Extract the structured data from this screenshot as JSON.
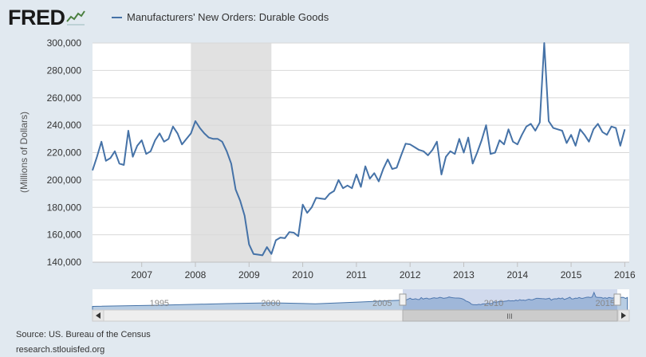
{
  "header": {
    "logo_text": "FRED",
    "logo_icon": "line-chart-icon"
  },
  "legend": {
    "series_label": "Manufacturers' New Orders: Durable Goods",
    "series_color": "#4572a7"
  },
  "navigator": {
    "labels": [
      "1995",
      "2000",
      "2005",
      "2010",
      "2015"
    ],
    "scrollbar_grip": "III"
  },
  "footer": {
    "source": "Source: US. Bureau of the Census",
    "url": "research.stlouisfed.org"
  },
  "chart_data": {
    "type": "line",
    "title": "",
    "xlabel": "",
    "ylabel": "(Millions of Dollars)",
    "xlim": [
      "2006-02",
      "2016-02"
    ],
    "ylim": [
      140000,
      300000
    ],
    "yticks": [
      "140,000",
      "160,000",
      "180,000",
      "200,000",
      "220,000",
      "240,000",
      "260,000",
      "280,000",
      "300,000"
    ],
    "xticks": [
      "2007",
      "2008",
      "2009",
      "2010",
      "2011",
      "2012",
      "2013",
      "2014",
      "2015",
      "2016"
    ],
    "grid": true,
    "recession_shading": [
      "2007-12",
      "2009-06"
    ],
    "series": [
      {
        "name": "Manufacturers' New Orders: Durable Goods",
        "color": "#4572a7",
        "x": [
          "2006-02",
          "2006-03",
          "2006-04",
          "2006-05",
          "2006-06",
          "2006-07",
          "2006-08",
          "2006-09",
          "2006-10",
          "2006-11",
          "2006-12",
          "2007-01",
          "2007-02",
          "2007-03",
          "2007-04",
          "2007-05",
          "2007-06",
          "2007-07",
          "2007-08",
          "2007-09",
          "2007-10",
          "2007-11",
          "2007-12",
          "2008-01",
          "2008-02",
          "2008-03",
          "2008-04",
          "2008-05",
          "2008-06",
          "2008-07",
          "2008-08",
          "2008-09",
          "2008-10",
          "2008-11",
          "2008-12",
          "2009-01",
          "2009-02",
          "2009-03",
          "2009-04",
          "2009-05",
          "2009-06",
          "2009-07",
          "2009-08",
          "2009-09",
          "2009-10",
          "2009-11",
          "2009-12",
          "2010-01",
          "2010-02",
          "2010-03",
          "2010-04",
          "2010-05",
          "2010-06",
          "2010-07",
          "2010-08",
          "2010-09",
          "2010-10",
          "2010-11",
          "2010-12",
          "2011-01",
          "2011-02",
          "2011-03",
          "2011-04",
          "2011-05",
          "2011-06",
          "2011-07",
          "2011-08",
          "2011-09",
          "2011-10",
          "2011-11",
          "2011-12",
          "2012-01",
          "2012-02",
          "2012-03",
          "2012-04",
          "2012-05",
          "2012-06",
          "2012-07",
          "2012-08",
          "2012-09",
          "2012-10",
          "2012-11",
          "2012-12",
          "2013-01",
          "2013-02",
          "2013-03",
          "2013-04",
          "2013-05",
          "2013-06",
          "2013-07",
          "2013-08",
          "2013-09",
          "2013-10",
          "2013-11",
          "2013-12",
          "2014-01",
          "2014-02",
          "2014-03",
          "2014-04",
          "2014-05",
          "2014-06",
          "2014-07",
          "2014-08",
          "2014-09",
          "2014-10",
          "2014-11",
          "2014-12",
          "2015-01",
          "2015-02",
          "2015-03",
          "2015-04",
          "2015-05",
          "2015-06",
          "2015-07",
          "2015-08",
          "2015-09",
          "2015-10",
          "2015-11",
          "2015-12",
          "2016-01"
        ],
        "values": [
          207000,
          217000,
          228000,
          214000,
          216000,
          221000,
          212000,
          211000,
          236000,
          217000,
          225000,
          229000,
          219000,
          221000,
          229000,
          234000,
          228000,
          230000,
          239000,
          234000,
          226000,
          230000,
          234000,
          243000,
          238000,
          234000,
          231000,
          230000,
          230000,
          228000,
          221000,
          212000,
          193000,
          185000,
          174000,
          153000,
          146000,
          145500,
          145000,
          151000,
          146000,
          156000,
          158000,
          157500,
          162000,
          161500,
          159000,
          182000,
          176000,
          180000,
          187000,
          186500,
          186000,
          190000,
          192000,
          200000,
          194000,
          196000,
          194000,
          204000,
          195000,
          210000,
          201000,
          205000,
          199000,
          208000,
          215000,
          208000,
          209000,
          218000,
          226500,
          226000,
          224000,
          222000,
          221000,
          218000,
          222000,
          228000,
          204000,
          217000,
          221000,
          219000,
          230000,
          220000,
          231000,
          212000,
          220000,
          229000,
          240000,
          219000,
          220000,
          229000,
          226000,
          237000,
          228000,
          226000,
          233000,
          239000,
          241000,
          236000,
          242000,
          300000,
          243000,
          238000,
          237000,
          236000,
          227000,
          233000,
          225000,
          237000,
          233000,
          228000,
          237000,
          241000,
          235000,
          233000,
          239000,
          238000,
          225000,
          237000
        ]
      }
    ]
  }
}
